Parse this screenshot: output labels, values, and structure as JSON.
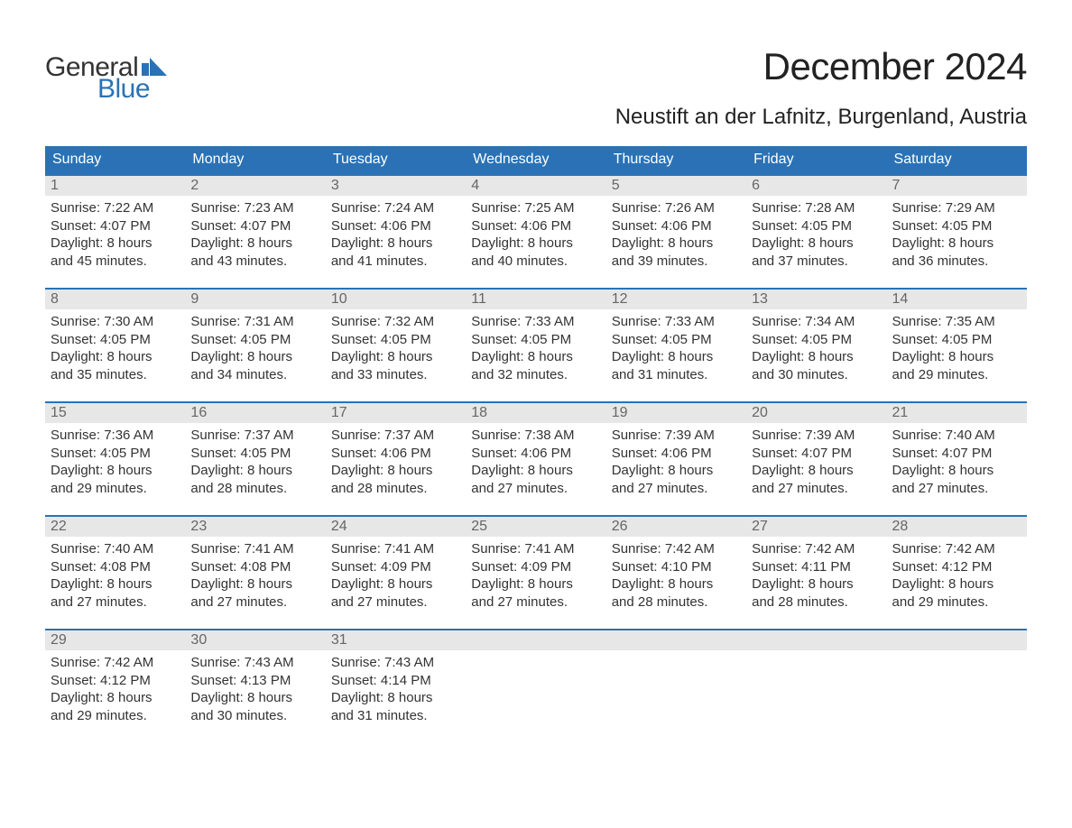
{
  "logo": {
    "top": "General",
    "bottom": "Blue"
  },
  "title": "December 2024",
  "location": "Neustift an der Lafnitz, Burgenland, Austria",
  "colors": {
    "header_bg": "#2a72b5",
    "header_text": "#ffffff",
    "week_border": "#2a72b5",
    "daynum_bg": "#e7e7e7",
    "daynum_text": "#666666",
    "body_text": "#333333",
    "page_bg": "#ffffff",
    "logo_blue": "#2a72b5"
  },
  "fonts": {
    "title_size_pt": 32,
    "location_size_pt": 18,
    "weekday_size_pt": 12,
    "daynum_size_pt": 12,
    "body_size_pt": 11,
    "logo_size_pt": 22
  },
  "weekdays": [
    "Sunday",
    "Monday",
    "Tuesday",
    "Wednesday",
    "Thursday",
    "Friday",
    "Saturday"
  ],
  "weeks": [
    [
      {
        "n": "1",
        "sunrise": "Sunrise: 7:22 AM",
        "sunset": "Sunset: 4:07 PM",
        "dl1": "Daylight: 8 hours",
        "dl2": "and 45 minutes."
      },
      {
        "n": "2",
        "sunrise": "Sunrise: 7:23 AM",
        "sunset": "Sunset: 4:07 PM",
        "dl1": "Daylight: 8 hours",
        "dl2": "and 43 minutes."
      },
      {
        "n": "3",
        "sunrise": "Sunrise: 7:24 AM",
        "sunset": "Sunset: 4:06 PM",
        "dl1": "Daylight: 8 hours",
        "dl2": "and 41 minutes."
      },
      {
        "n": "4",
        "sunrise": "Sunrise: 7:25 AM",
        "sunset": "Sunset: 4:06 PM",
        "dl1": "Daylight: 8 hours",
        "dl2": "and 40 minutes."
      },
      {
        "n": "5",
        "sunrise": "Sunrise: 7:26 AM",
        "sunset": "Sunset: 4:06 PM",
        "dl1": "Daylight: 8 hours",
        "dl2": "and 39 minutes."
      },
      {
        "n": "6",
        "sunrise": "Sunrise: 7:28 AM",
        "sunset": "Sunset: 4:05 PM",
        "dl1": "Daylight: 8 hours",
        "dl2": "and 37 minutes."
      },
      {
        "n": "7",
        "sunrise": "Sunrise: 7:29 AM",
        "sunset": "Sunset: 4:05 PM",
        "dl1": "Daylight: 8 hours",
        "dl2": "and 36 minutes."
      }
    ],
    [
      {
        "n": "8",
        "sunrise": "Sunrise: 7:30 AM",
        "sunset": "Sunset: 4:05 PM",
        "dl1": "Daylight: 8 hours",
        "dl2": "and 35 minutes."
      },
      {
        "n": "9",
        "sunrise": "Sunrise: 7:31 AM",
        "sunset": "Sunset: 4:05 PM",
        "dl1": "Daylight: 8 hours",
        "dl2": "and 34 minutes."
      },
      {
        "n": "10",
        "sunrise": "Sunrise: 7:32 AM",
        "sunset": "Sunset: 4:05 PM",
        "dl1": "Daylight: 8 hours",
        "dl2": "and 33 minutes."
      },
      {
        "n": "11",
        "sunrise": "Sunrise: 7:33 AM",
        "sunset": "Sunset: 4:05 PM",
        "dl1": "Daylight: 8 hours",
        "dl2": "and 32 minutes."
      },
      {
        "n": "12",
        "sunrise": "Sunrise: 7:33 AM",
        "sunset": "Sunset: 4:05 PM",
        "dl1": "Daylight: 8 hours",
        "dl2": "and 31 minutes."
      },
      {
        "n": "13",
        "sunrise": "Sunrise: 7:34 AM",
        "sunset": "Sunset: 4:05 PM",
        "dl1": "Daylight: 8 hours",
        "dl2": "and 30 minutes."
      },
      {
        "n": "14",
        "sunrise": "Sunrise: 7:35 AM",
        "sunset": "Sunset: 4:05 PM",
        "dl1": "Daylight: 8 hours",
        "dl2": "and 29 minutes."
      }
    ],
    [
      {
        "n": "15",
        "sunrise": "Sunrise: 7:36 AM",
        "sunset": "Sunset: 4:05 PM",
        "dl1": "Daylight: 8 hours",
        "dl2": "and 29 minutes."
      },
      {
        "n": "16",
        "sunrise": "Sunrise: 7:37 AM",
        "sunset": "Sunset: 4:05 PM",
        "dl1": "Daylight: 8 hours",
        "dl2": "and 28 minutes."
      },
      {
        "n": "17",
        "sunrise": "Sunrise: 7:37 AM",
        "sunset": "Sunset: 4:06 PM",
        "dl1": "Daylight: 8 hours",
        "dl2": "and 28 minutes."
      },
      {
        "n": "18",
        "sunrise": "Sunrise: 7:38 AM",
        "sunset": "Sunset: 4:06 PM",
        "dl1": "Daylight: 8 hours",
        "dl2": "and 27 minutes."
      },
      {
        "n": "19",
        "sunrise": "Sunrise: 7:39 AM",
        "sunset": "Sunset: 4:06 PM",
        "dl1": "Daylight: 8 hours",
        "dl2": "and 27 minutes."
      },
      {
        "n": "20",
        "sunrise": "Sunrise: 7:39 AM",
        "sunset": "Sunset: 4:07 PM",
        "dl1": "Daylight: 8 hours",
        "dl2": "and 27 minutes."
      },
      {
        "n": "21",
        "sunrise": "Sunrise: 7:40 AM",
        "sunset": "Sunset: 4:07 PM",
        "dl1": "Daylight: 8 hours",
        "dl2": "and 27 minutes."
      }
    ],
    [
      {
        "n": "22",
        "sunrise": "Sunrise: 7:40 AM",
        "sunset": "Sunset: 4:08 PM",
        "dl1": "Daylight: 8 hours",
        "dl2": "and 27 minutes."
      },
      {
        "n": "23",
        "sunrise": "Sunrise: 7:41 AM",
        "sunset": "Sunset: 4:08 PM",
        "dl1": "Daylight: 8 hours",
        "dl2": "and 27 minutes."
      },
      {
        "n": "24",
        "sunrise": "Sunrise: 7:41 AM",
        "sunset": "Sunset: 4:09 PM",
        "dl1": "Daylight: 8 hours",
        "dl2": "and 27 minutes."
      },
      {
        "n": "25",
        "sunrise": "Sunrise: 7:41 AM",
        "sunset": "Sunset: 4:09 PM",
        "dl1": "Daylight: 8 hours",
        "dl2": "and 27 minutes."
      },
      {
        "n": "26",
        "sunrise": "Sunrise: 7:42 AM",
        "sunset": "Sunset: 4:10 PM",
        "dl1": "Daylight: 8 hours",
        "dl2": "and 28 minutes."
      },
      {
        "n": "27",
        "sunrise": "Sunrise: 7:42 AM",
        "sunset": "Sunset: 4:11 PM",
        "dl1": "Daylight: 8 hours",
        "dl2": "and 28 minutes."
      },
      {
        "n": "28",
        "sunrise": "Sunrise: 7:42 AM",
        "sunset": "Sunset: 4:12 PM",
        "dl1": "Daylight: 8 hours",
        "dl2": "and 29 minutes."
      }
    ],
    [
      {
        "n": "29",
        "sunrise": "Sunrise: 7:42 AM",
        "sunset": "Sunset: 4:12 PM",
        "dl1": "Daylight: 8 hours",
        "dl2": "and 29 minutes."
      },
      {
        "n": "30",
        "sunrise": "Sunrise: 7:43 AM",
        "sunset": "Sunset: 4:13 PM",
        "dl1": "Daylight: 8 hours",
        "dl2": "and 30 minutes."
      },
      {
        "n": "31",
        "sunrise": "Sunrise: 7:43 AM",
        "sunset": "Sunset: 4:14 PM",
        "dl1": "Daylight: 8 hours",
        "dl2": "and 31 minutes."
      },
      {
        "n": "",
        "empty": true
      },
      {
        "n": "",
        "empty": true
      },
      {
        "n": "",
        "empty": true
      },
      {
        "n": "",
        "empty": true
      }
    ]
  ]
}
